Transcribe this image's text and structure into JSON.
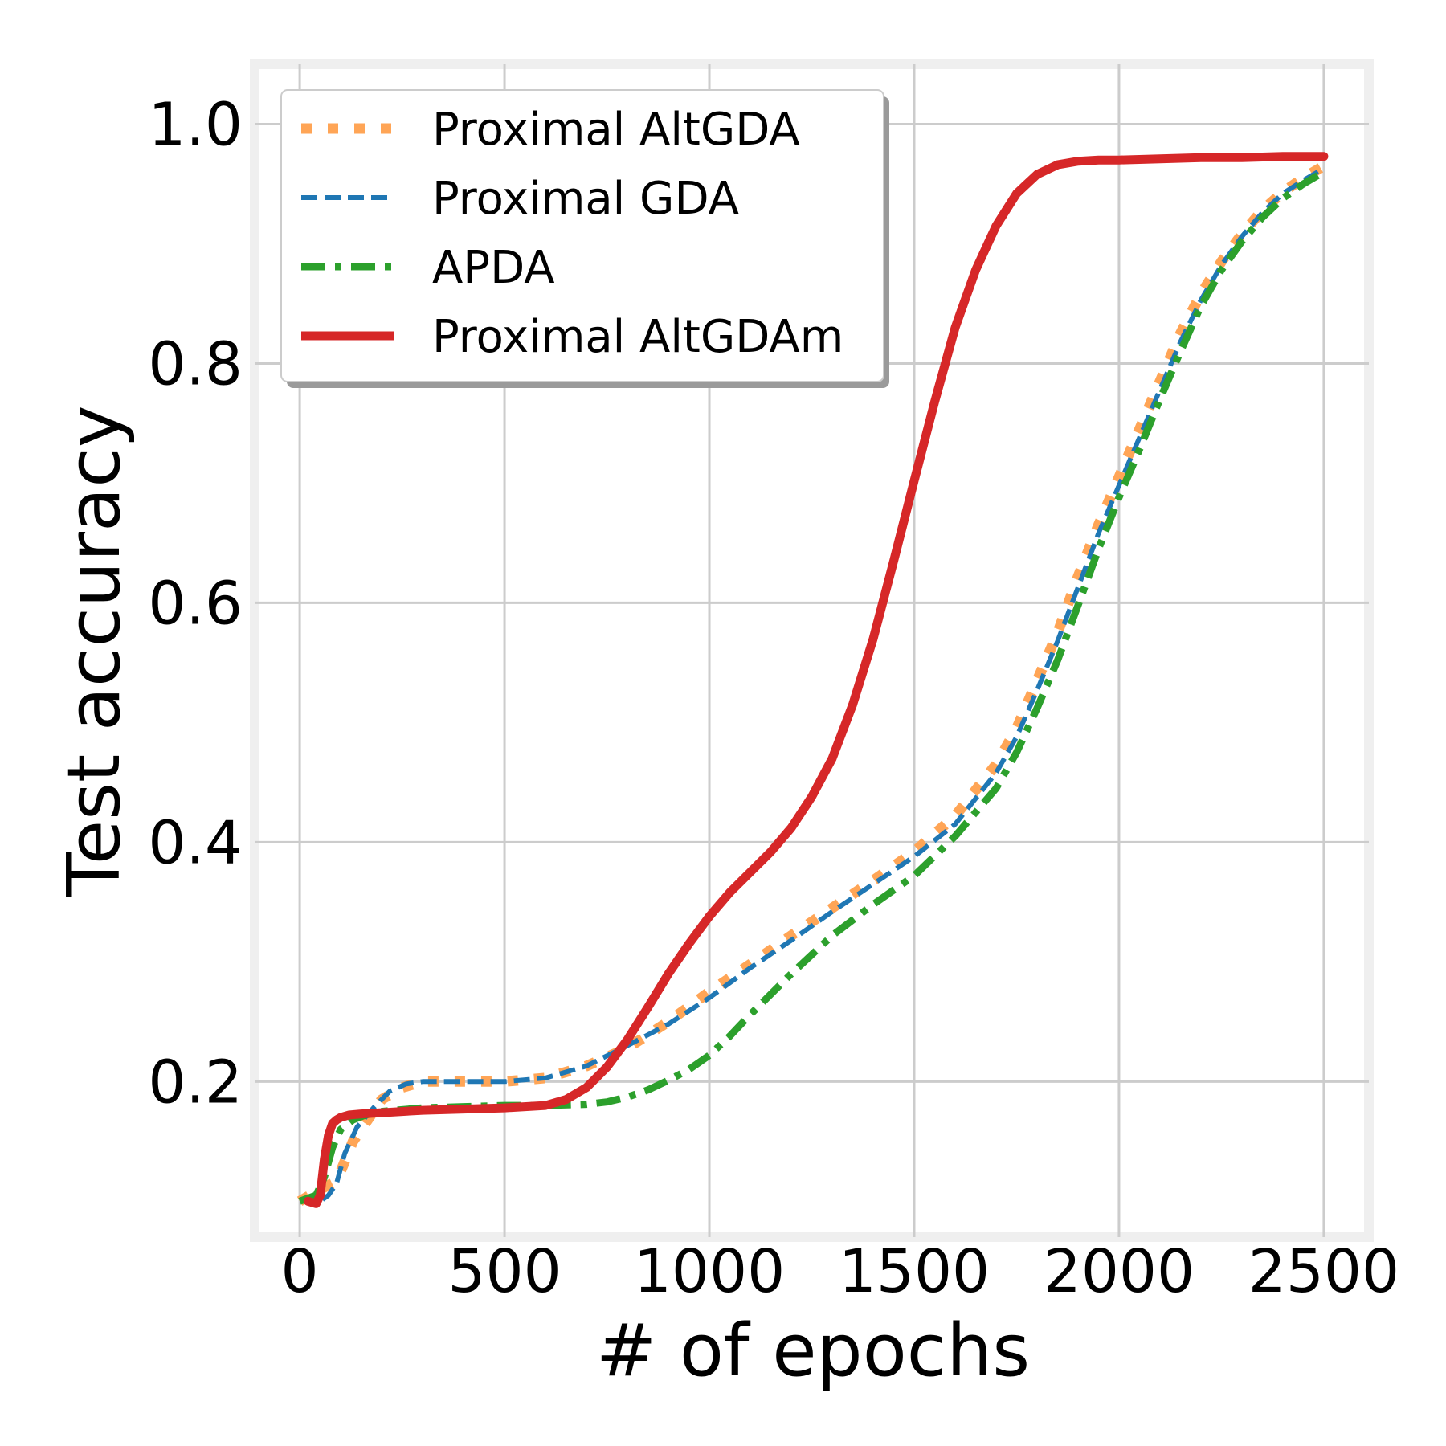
{
  "chart_data": {
    "type": "line",
    "title": "",
    "xlabel": "# of epochs",
    "ylabel": "Test accuracy",
    "xlim": [
      -110,
      2610
    ],
    "ylim": [
      0.07,
      1.05
    ],
    "xticks": [
      0,
      500,
      1000,
      1500,
      2000,
      2500
    ],
    "xtick_labels": [
      "0",
      "500",
      "1000",
      "1500",
      "2000",
      "2500"
    ],
    "yticks": [
      0.2,
      0.4,
      0.6,
      0.8,
      1.0
    ],
    "ytick_labels": [
      "0.2",
      "0.4",
      "0.6",
      "0.8",
      "1.0"
    ],
    "grid": true,
    "legend_position": "top-left",
    "series": [
      {
        "name": "Proximal AltGDA",
        "color": "#ffa556",
        "style": "dotted",
        "x": [
          0,
          50,
          80,
          100,
          130,
          160,
          200,
          250,
          300,
          400,
          500,
          600,
          700,
          800,
          900,
          1000,
          1100,
          1200,
          1300,
          1400,
          1500,
          1600,
          1700,
          1750,
          1800,
          1850,
          1900,
          1950,
          2000,
          2050,
          2100,
          2150,
          2200,
          2250,
          2300,
          2350,
          2400,
          2450,
          2500
        ],
        "values": [
          0.1,
          0.11,
          0.115,
          0.125,
          0.15,
          0.165,
          0.185,
          0.195,
          0.2,
          0.2,
          0.2,
          0.203,
          0.213,
          0.228,
          0.25,
          0.275,
          0.298,
          0.322,
          0.345,
          0.368,
          0.392,
          0.422,
          0.465,
          0.495,
          0.535,
          0.575,
          0.622,
          0.665,
          0.705,
          0.745,
          0.785,
          0.825,
          0.858,
          0.885,
          0.908,
          0.928,
          0.943,
          0.955,
          0.965
        ]
      },
      {
        "name": "Proximal GDA",
        "color": "#1f77b4",
        "style": "dashed",
        "x": [
          0,
          50,
          70,
          90,
          110,
          140,
          180,
          220,
          260,
          300,
          400,
          500,
          600,
          700,
          800,
          900,
          1000,
          1100,
          1200,
          1300,
          1400,
          1500,
          1600,
          1700,
          1750,
          1800,
          1850,
          1900,
          1950,
          2000,
          2050,
          2100,
          2150,
          2200,
          2250,
          2300,
          2350,
          2400,
          2450,
          2500
        ],
        "values": [
          0.1,
          0.1,
          0.105,
          0.115,
          0.14,
          0.162,
          0.178,
          0.192,
          0.198,
          0.2,
          0.2,
          0.2,
          0.203,
          0.213,
          0.23,
          0.248,
          0.27,
          0.295,
          0.318,
          0.342,
          0.365,
          0.388,
          0.415,
          0.458,
          0.488,
          0.527,
          0.568,
          0.613,
          0.658,
          0.698,
          0.738,
          0.778,
          0.818,
          0.853,
          0.882,
          0.906,
          0.926,
          0.942,
          0.953,
          0.963
        ]
      },
      {
        "name": "APDA",
        "color": "#2ca02c",
        "style": "dashdot",
        "x": [
          0,
          40,
          60,
          80,
          100,
          130,
          160,
          200,
          300,
          400,
          500,
          600,
          700,
          750,
          800,
          850,
          900,
          950,
          1000,
          1050,
          1100,
          1200,
          1300,
          1400,
          1500,
          1600,
          1700,
          1750,
          1800,
          1850,
          1900,
          1950,
          2000,
          2050,
          2100,
          2150,
          2200,
          2250,
          2300,
          2350,
          2400,
          2450,
          2500
        ],
        "values": [
          0.1,
          0.105,
          0.12,
          0.145,
          0.16,
          0.168,
          0.172,
          0.175,
          0.178,
          0.179,
          0.18,
          0.18,
          0.181,
          0.183,
          0.187,
          0.193,
          0.201,
          0.21,
          0.222,
          0.238,
          0.256,
          0.29,
          0.322,
          0.348,
          0.372,
          0.405,
          0.445,
          0.475,
          0.512,
          0.552,
          0.598,
          0.645,
          0.688,
          0.728,
          0.77,
          0.81,
          0.848,
          0.878,
          0.902,
          0.922,
          0.938,
          0.95,
          0.96
        ]
      },
      {
        "name": "Proximal AltGDAm",
        "color": "#d62728",
        "style": "solid",
        "x": [
          20,
          40,
          50,
          60,
          70,
          80,
          90,
          100,
          120,
          150,
          200,
          300,
          400,
          500,
          600,
          650,
          700,
          750,
          800,
          850,
          900,
          950,
          1000,
          1050,
          1100,
          1150,
          1200,
          1250,
          1300,
          1350,
          1400,
          1450,
          1500,
          1550,
          1600,
          1650,
          1700,
          1750,
          1800,
          1850,
          1900,
          1950,
          2000,
          2100,
          2200,
          2300,
          2400,
          2500
        ],
        "values": [
          0.1,
          0.098,
          0.105,
          0.135,
          0.155,
          0.165,
          0.168,
          0.17,
          0.172,
          0.173,
          0.174,
          0.176,
          0.177,
          0.178,
          0.18,
          0.185,
          0.195,
          0.212,
          0.235,
          0.262,
          0.29,
          0.315,
          0.338,
          0.358,
          0.375,
          0.392,
          0.412,
          0.438,
          0.47,
          0.515,
          0.57,
          0.635,
          0.702,
          0.768,
          0.83,
          0.878,
          0.915,
          0.942,
          0.958,
          0.966,
          0.969,
          0.97,
          0.97,
          0.971,
          0.972,
          0.972,
          0.973,
          0.973
        ]
      }
    ]
  }
}
